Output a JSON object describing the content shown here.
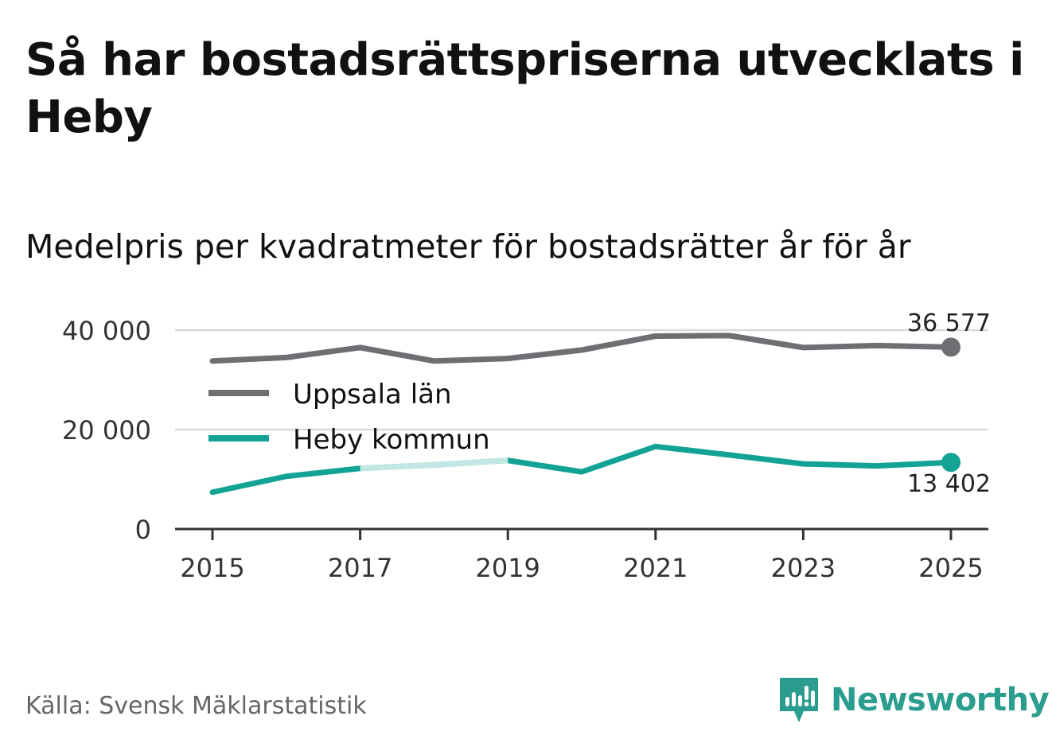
{
  "title": "Så har bostadsrättspriserna utvecklats i Heby",
  "subtitle": "Medelpris per kvadratmeter för bostadsrätter år för år",
  "source": "Källa: Svensk Mäklarstatistik",
  "brand": {
    "name": "Newsworthy",
    "color": "#2a9d8f"
  },
  "chart_data": {
    "type": "line",
    "title": "Så har bostadsrättspriserna utvecklats i Heby",
    "subtitle": "Medelpris per kvadratmeter för bostadsrätter år för år",
    "xlabel": "",
    "ylabel": "",
    "x": [
      2015,
      2016,
      2017,
      2018,
      2019,
      2020,
      2021,
      2022,
      2023,
      2024,
      2025
    ],
    "ylim": [
      0,
      40000
    ],
    "yticks": [
      0,
      20000,
      40000
    ],
    "ytick_labels": [
      "0",
      "20 000",
      "40 000"
    ],
    "xticks": [
      2015,
      2017,
      2019,
      2021,
      2023,
      2025
    ],
    "xtick_labels": [
      "2015",
      "2017",
      "2019",
      "2021",
      "2023",
      "2025"
    ],
    "grid": true,
    "legend_position": "left",
    "series": [
      {
        "name": "Uppsala län",
        "color": "#6f6e73",
        "values": [
          33800,
          34500,
          36500,
          33800,
          34300,
          36000,
          38800,
          38900,
          36500,
          36900,
          36577
        ],
        "end_label": "36 577"
      },
      {
        "name": "Heby kommun",
        "color": "#12a395",
        "faded_color": "#c3e8e4",
        "faded_range": [
          2017,
          2019
        ],
        "values": [
          7400,
          10600,
          12200,
          12900,
          13800,
          11500,
          16600,
          14900,
          13100,
          12700,
          13402
        ],
        "end_label": "13 402"
      }
    ]
  }
}
